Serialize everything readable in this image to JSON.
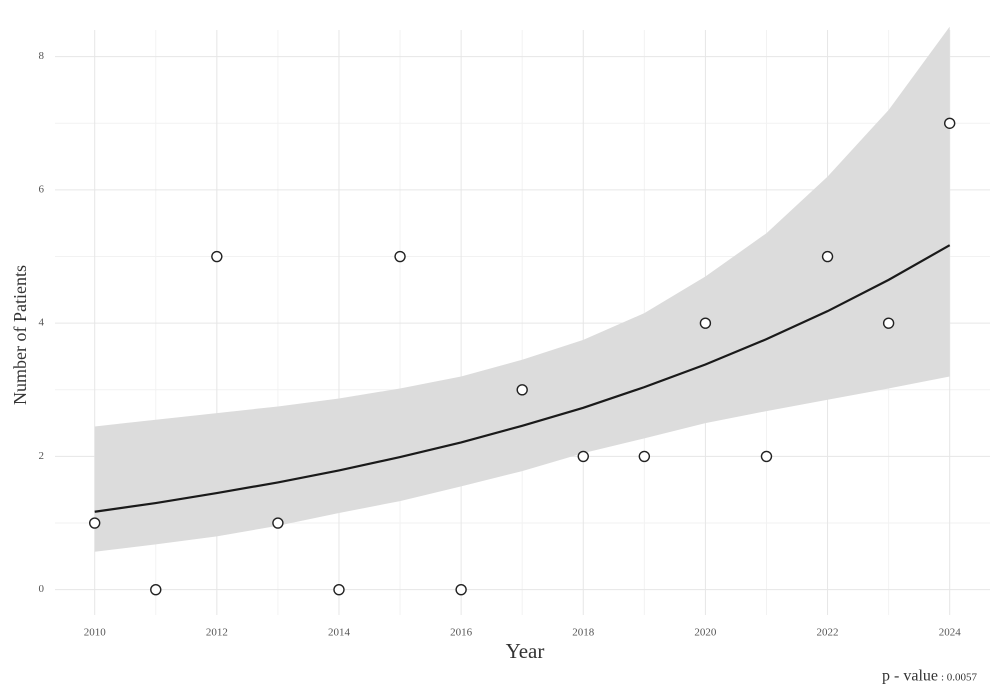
{
  "chart_data": {
    "type": "scatter",
    "x_label": "Year",
    "y_label": "Number of Patients",
    "x": [
      2010,
      2011,
      2012,
      2013,
      2014,
      2015,
      2016,
      2017,
      2018,
      2019,
      2020,
      2021,
      2022,
      2023,
      2024
    ],
    "values": [
      1,
      0,
      5,
      1,
      0,
      5,
      0,
      3,
      2,
      2,
      4,
      2,
      5,
      4,
      7
    ],
    "fit": {
      "values": [
        1.17,
        1.3,
        1.45,
        1.61,
        1.79,
        1.99,
        2.21,
        2.46,
        2.73,
        3.04,
        3.38,
        3.76,
        4.18,
        4.65,
        5.17
      ],
      "lower": [
        0.57,
        0.68,
        0.8,
        0.96,
        1.15,
        1.33,
        1.55,
        1.78,
        2.05,
        2.27,
        2.5,
        2.68,
        2.85,
        3.02,
        3.2
      ],
      "upper": [
        2.45,
        2.55,
        2.65,
        2.75,
        2.87,
        3.02,
        3.2,
        3.45,
        3.75,
        4.15,
        4.7,
        5.35,
        6.2,
        7.2,
        8.45
      ],
      "color": "#1a1a1a",
      "band_color": "#dcdcdc"
    },
    "point_color": "#222222",
    "xlim": [
      2009.35,
      2024.66
    ],
    "ylim": [
      -0.38,
      8.4
    ],
    "xticks": [
      2010,
      2012,
      2014,
      2016,
      2018,
      2020,
      2022,
      2024
    ],
    "yticks": [
      0,
      2,
      4,
      6,
      8
    ],
    "grid": true,
    "annotation": {
      "label": "p - value",
      "value": ": 0.0057"
    }
  }
}
